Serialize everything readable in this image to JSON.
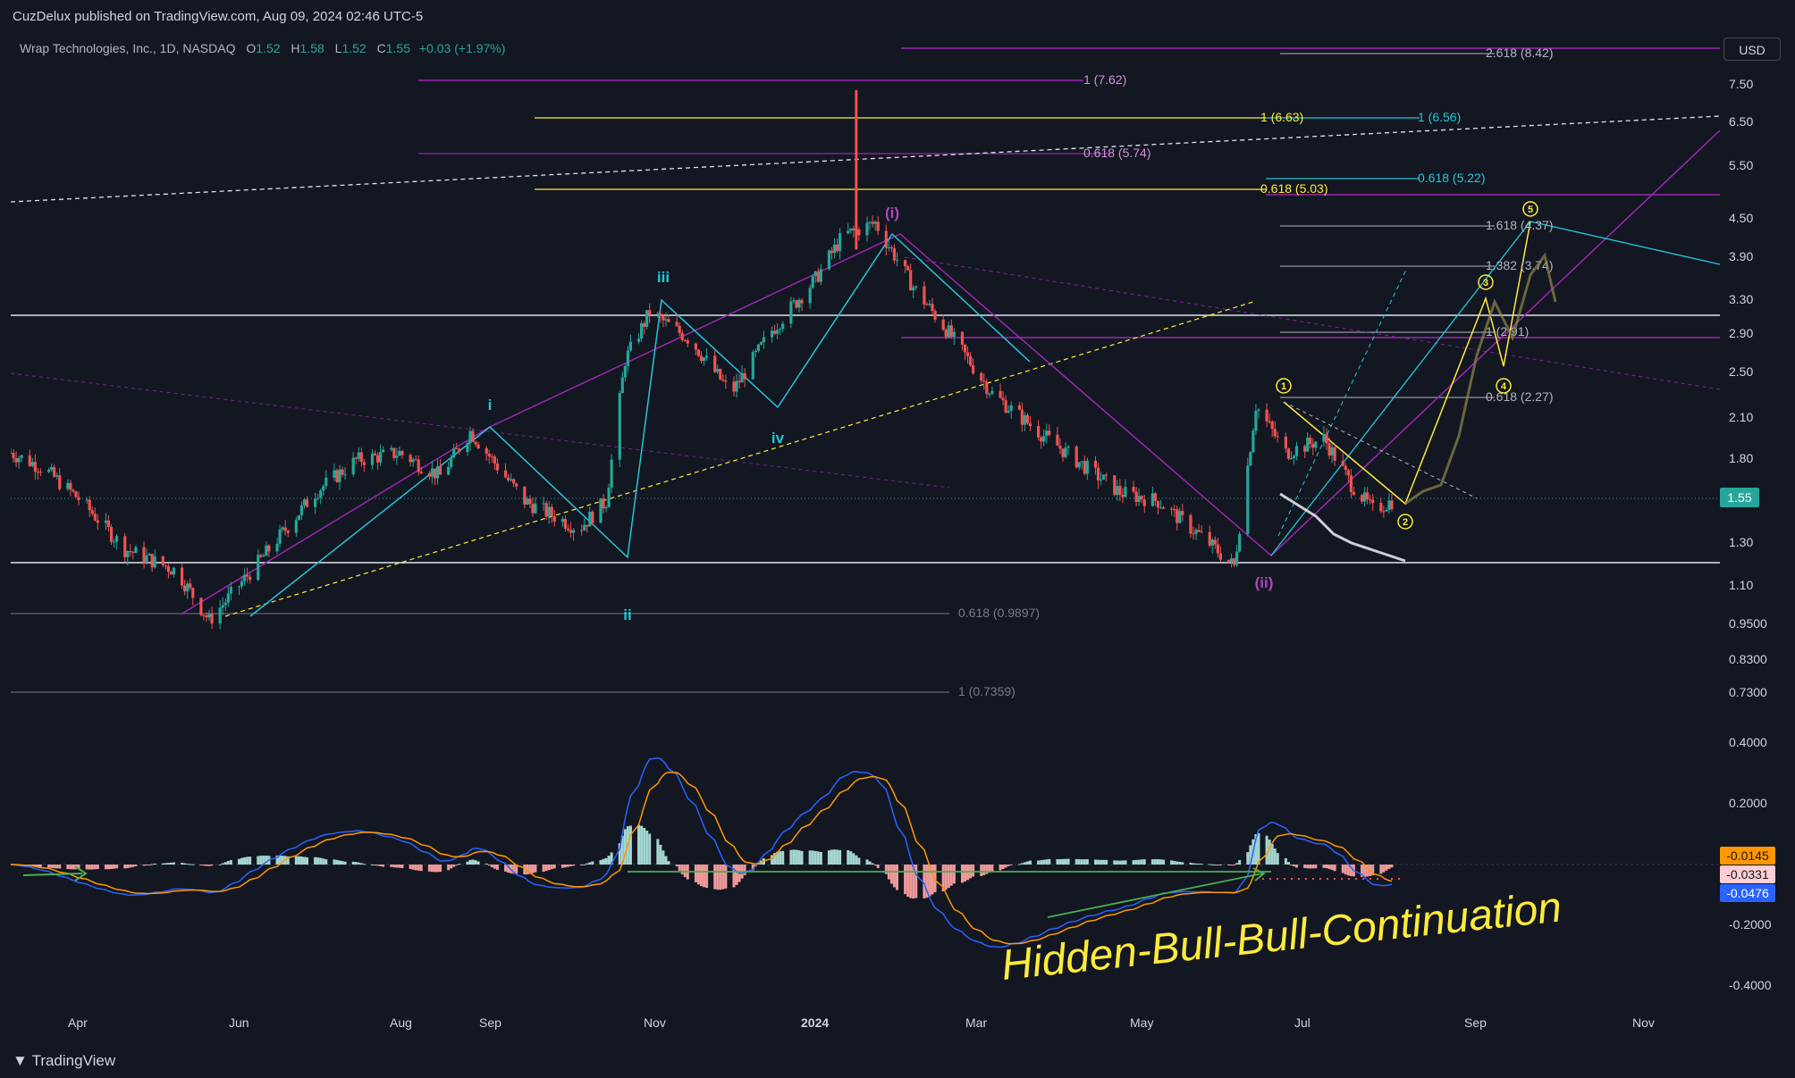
{
  "header": {
    "published": "CuzDelux published on TradingView.com, Aug 09, 2024 02:46 UTC-5",
    "symbol": "Wrap Technologies, Inc., 1D, NASDAQ",
    "o_label": "O",
    "o_value": "1.52",
    "h_label": "H",
    "h_value": "1.58",
    "l_label": "L",
    "l_value": "1.52",
    "c_label": "C",
    "c_value": "1.55",
    "change": "+0.03 (+1.97%)",
    "currency": "USD"
  },
  "footer": {
    "brand": "TradingView"
  },
  "colors": {
    "background": "#131722",
    "up": "#26a69a",
    "down": "#ef5350",
    "fib_purple": "#9c27b0",
    "fib_yellow": "#ffeb3b",
    "fib_cyan": "#00bcd4",
    "macd": "#2962ff",
    "signal": "#ff9800"
  },
  "chart_data": [
    {
      "type": "candlestick",
      "title": "Wrap Technologies, Inc., 1D, NASDAQ",
      "scale": "log",
      "ylim": [
        0.69,
        8.6
      ],
      "y_ticks": [
        "7.50",
        "6.50",
        "5.50",
        "4.50",
        "3.90",
        "3.30",
        "2.90",
        "2.50",
        "2.10",
        "1.80",
        "1.50",
        "1.30",
        "1.10",
        "0.9500",
        "0.8300",
        "0.7300"
      ],
      "x_ticks": [
        "Apr",
        "Jun",
        "Aug",
        "Sep",
        "Nov",
        "2024",
        "Mar",
        "May",
        "Jul",
        "Sep",
        "Nov"
      ],
      "last_price": "1.55",
      "close_path": [
        [
          "2023-03-20",
          1.85
        ],
        [
          "2023-04-01",
          1.75
        ],
        [
          "2023-04-15",
          1.55
        ],
        [
          "2023-05-01",
          1.3
        ],
        [
          "2023-05-20",
          1.2
        ],
        [
          "2023-06-01",
          1.0
        ],
        [
          "2023-06-20",
          1.25
        ],
        [
          "2023-07-10",
          1.6
        ],
        [
          "2023-07-25",
          1.8
        ],
        [
          "2023-08-10",
          1.85
        ],
        [
          "2023-08-25",
          1.7
        ],
        [
          "2023-09-05",
          2.0
        ],
        [
          "2023-09-25",
          1.55
        ],
        [
          "2023-10-15",
          1.4
        ],
        [
          "2023-10-25",
          1.55
        ],
        [
          "2023-11-01",
          2.6
        ],
        [
          "2023-11-10",
          3.1
        ],
        [
          "2023-11-25",
          2.8
        ],
        [
          "2023-12-10",
          2.3
        ],
        [
          "2023-12-25",
          2.9
        ],
        [
          "2024-01-10",
          3.5
        ],
        [
          "2024-01-20",
          4.1
        ],
        [
          "2024-02-01",
          4.3
        ],
        [
          "2024-02-15",
          3.4
        ],
        [
          "2024-03-01",
          2.8
        ],
        [
          "2024-03-15",
          2.3
        ],
        [
          "2024-04-01",
          2.0
        ],
        [
          "2024-04-15",
          1.8
        ],
        [
          "2024-05-01",
          1.6
        ],
        [
          "2024-05-15",
          1.55
        ],
        [
          "2024-06-01",
          1.35
        ],
        [
          "2024-06-12",
          1.22
        ],
        [
          "2024-06-20",
          2.2
        ],
        [
          "2024-07-01",
          1.85
        ],
        [
          "2024-07-15",
          1.95
        ],
        [
          "2024-07-25",
          1.65
        ],
        [
          "2024-08-02",
          1.5
        ],
        [
          "2024-08-09",
          1.55
        ]
      ],
      "fib_levels": [
        {
          "label": "2.618 (8.42)",
          "color": "#b2b5be"
        },
        {
          "label": "1 (7.62)",
          "color": "#ce93d8"
        },
        {
          "label": "1 (6.63)",
          "color": "#ffeb3b"
        },
        {
          "label": "1 (6.56)",
          "color": "#26c6da"
        },
        {
          "label": "0.618 (5.74)",
          "color": "#ce93d8"
        },
        {
          "label": "0.618 (5.22)",
          "color": "#26c6da"
        },
        {
          "label": "0.618 (5.03)",
          "color": "#ffeb3b"
        },
        {
          "label": "1.618 (4.37)",
          "color": "#b2b5be"
        },
        {
          "label": "1.382 (3.74)",
          "color": "#b2b5be"
        },
        {
          "label": "1 (2.91)",
          "color": "#b2b5be"
        },
        {
          "label": "0.618 (2.27)",
          "color": "#b2b5be"
        },
        {
          "label": "0.618 (0.9897)",
          "color": "#787b86"
        },
        {
          "label": "1 (0.7359)",
          "color": "#787b86"
        }
      ],
      "wave_labels": [
        "i",
        "ii",
        "iii",
        "iv",
        "(i)",
        "(ii)",
        "1",
        "2",
        "3",
        "4",
        "5"
      ]
    },
    {
      "type": "bar",
      "title": "MACD",
      "ylim": [
        -0.45,
        0.45
      ],
      "y_ticks": [
        "0.4000",
        "0.2000",
        "-0.2000",
        "-0.4000"
      ],
      "values": {
        "histogram": "-0.0331",
        "macd": "-0.0476",
        "signal": "-0.0145"
      },
      "annotation": "Hidden-Bull-Bull-Continuation"
    }
  ]
}
